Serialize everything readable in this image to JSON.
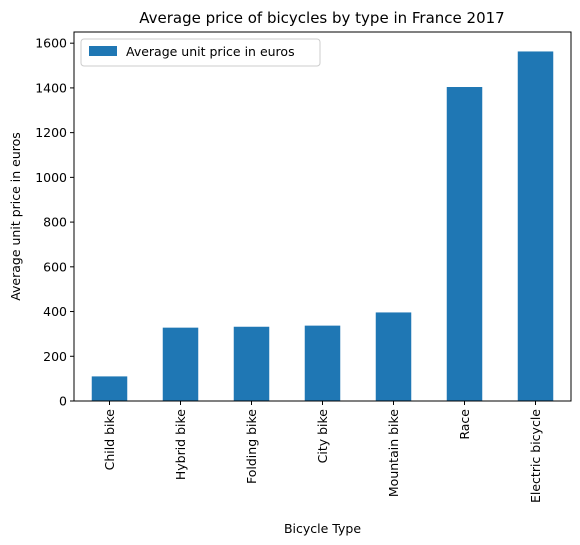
{
  "chart_data": {
    "type": "bar",
    "title": "Average price of bicycles by type in France 2017",
    "xlabel": "Bicycle Type",
    "ylabel": "Average unit price in euros",
    "categories": [
      "Child bike",
      "Hybrid bike",
      "Folding bike",
      "City bike",
      "Mountain bike",
      "Race",
      "Electric bicycle"
    ],
    "series": [
      {
        "name": "Average unit price in euros",
        "values": [
          110,
          328,
          332,
          337,
          396,
          1404,
          1563
        ],
        "color": "#1f77b4"
      }
    ],
    "ylim": [
      0,
      1650
    ],
    "yticks": [
      0,
      200,
      400,
      600,
      800,
      1000,
      1200,
      1400,
      1600
    ],
    "grid": false,
    "legend_position": "top-left"
  }
}
